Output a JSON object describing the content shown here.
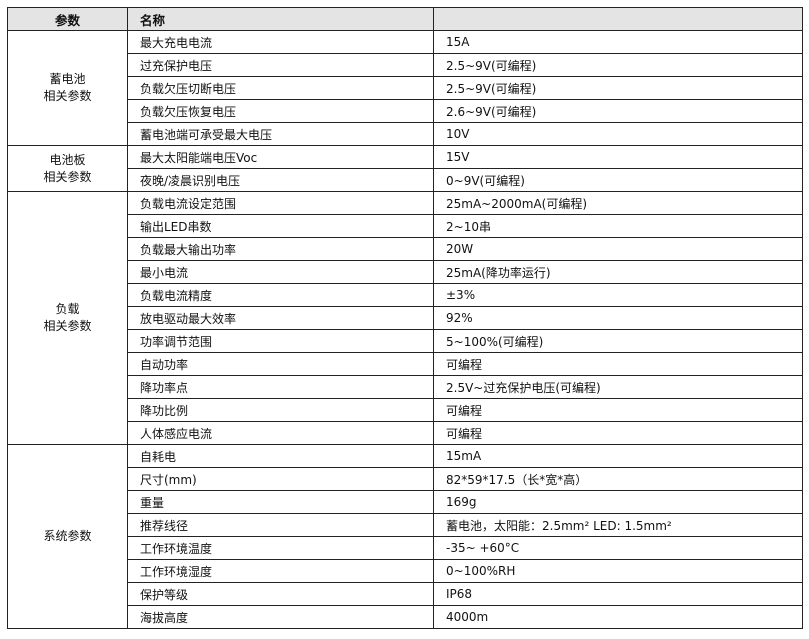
{
  "header": {
    "col1": "参数",
    "col2": "名称",
    "col3": ""
  },
  "groups": [
    {
      "label": [
        "蓄电池",
        "相关参数"
      ],
      "rows": [
        [
          "最大充电电流",
          "15A"
        ],
        [
          "过充保护电压",
          "2.5~9V(可编程)"
        ],
        [
          "负载欠压切断电压",
          "2.5~9V(可编程)"
        ],
        [
          "负载欠压恢复电压",
          "2.6~9V(可编程)"
        ],
        [
          "蓄电池端可承受最大电压",
          "10V"
        ]
      ]
    },
    {
      "label": [
        "电池板",
        "相关参数"
      ],
      "rows": [
        [
          "最大太阳能端电压Voc",
          "15V"
        ],
        [
          "夜晚/凌晨识别电压",
          "0~9V(可编程)"
        ]
      ]
    },
    {
      "label": [
        "负载",
        "相关参数"
      ],
      "rows": [
        [
          "负载电流设定范围",
          "25mA~2000mA(可编程)"
        ],
        [
          "输出LED串数",
          "2~10串"
        ],
        [
          "负载最大输出功率",
          "20W"
        ],
        [
          "最小电流",
          "25mA(降功率运行)"
        ],
        [
          "负载电流精度",
          "±3%"
        ],
        [
          "放电驱动最大效率",
          "92%"
        ],
        [
          "功率调节范围",
          "5~100%(可编程)"
        ],
        [
          "自动功率",
          "可编程"
        ],
        [
          "降功率点",
          "2.5V~过充保护电压(可编程)"
        ],
        [
          "降功比例",
          "可编程"
        ],
        [
          "人体感应电流",
          "可编程"
        ]
      ]
    },
    {
      "label": [
        "系统参数"
      ],
      "rows": [
        [
          "自耗电",
          "15mA"
        ],
        [
          "尺寸(mm)",
          "82*59*17.5（长*宽*高）"
        ],
        [
          "重量",
          "169g"
        ],
        [
          "推荐线径",
          "蓄电池，太阳能：2.5mm²    LED: 1.5mm²"
        ],
        [
          "工作环境温度",
          "-35~ +60°C"
        ],
        [
          "工作环境湿度",
          "0~100%RH"
        ],
        [
          "保护等级",
          "IP68"
        ],
        [
          "海拔高度",
          "4000m"
        ]
      ]
    }
  ]
}
